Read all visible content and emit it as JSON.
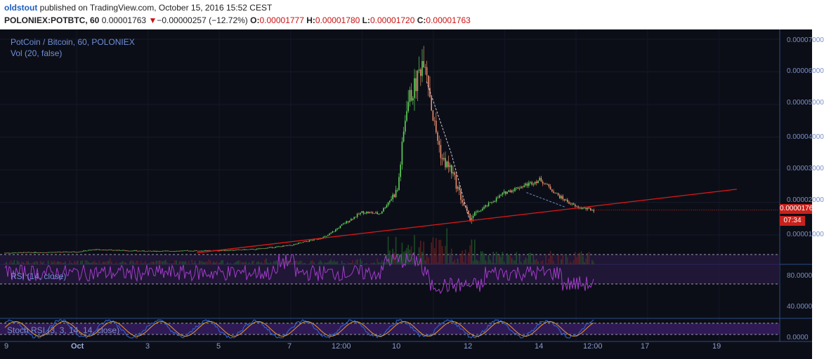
{
  "header": {
    "author": "oldstout",
    "published": " published on TradingView.com, October 15, 2016 15:52 CEST",
    "symbol": "POLONIEX:POTBTC, 60",
    "last": "0.00001763",
    "down_arrow": "▼",
    "change": "−0.00000257 (−12.72%)",
    "o_label": "O:",
    "o_val": "0.00001777",
    "h_label": "H:",
    "h_val": "0.00001780",
    "l_label": "L:",
    "l_val": "0.00001720",
    "c_label": "C:",
    "c_val": "0.00001763"
  },
  "panes": {
    "main_title": "PotCoin / Bitcoin, 60, POLONIEX",
    "vol_title": "Vol (20, false)",
    "rsi_title": "RSI (14, close)",
    "stoch_title": "Stoch RSI (3, 3, 14, 14, close)"
  },
  "price_axis": [
    "0.00007000",
    "0.00006000",
    "0.00005000",
    "0.00004000",
    "0.00003000",
    "0.00002000",
    "0.00001000"
  ],
  "rsi_axis": [
    "80.0000",
    "40.0000"
  ],
  "stoch_axis": [
    "0.0000"
  ],
  "badges": {
    "price": "0.00001763",
    "timer": "07:34"
  },
  "x_axis": [
    {
      "label": "9",
      "bold": false
    },
    {
      "label": "Oct",
      "bold": true
    },
    {
      "label": "3",
      "bold": false
    },
    {
      "label": "5",
      "bold": false
    },
    {
      "label": "7",
      "bold": false
    },
    {
      "label": "12:00",
      "bold": false
    },
    {
      "label": "10",
      "bold": false
    },
    {
      "label": "12",
      "bold": false
    },
    {
      "label": "14",
      "bold": false
    },
    {
      "label": "12:00",
      "bold": false
    },
    {
      "label": "17",
      "bold": false
    },
    {
      "label": "19",
      "bold": false
    }
  ],
  "colors": {
    "up": "#5fd35a",
    "down": "#e98c6a",
    "trend": "#e01818",
    "rsi": "#a03cc8",
    "stoch_k": "#2f6ad8",
    "stoch_d": "#e69a2a",
    "background": "#0c0e17"
  },
  "chart_data": {
    "type": "candlestick",
    "title": "PotCoin / Bitcoin, 60, POLONIEX",
    "x_range": [
      "Sep 29",
      "Oct 20"
    ],
    "ylim": [
      0,
      7e-05
    ],
    "price_path": [
      [
        "Sep 29",
        4.5e-06
      ],
      [
        "Oct 1",
        4.8e-06
      ],
      [
        "Oct 1 12:00",
        5.5e-06
      ],
      [
        "Oct 3",
        5e-06
      ],
      [
        "Oct 5",
        5.2e-06
      ],
      [
        "Oct 6",
        5.6e-06
      ],
      [
        "Oct 7",
        6.8e-06
      ],
      [
        "Oct 8",
        9.5e-06
      ],
      [
        "Oct 8 12:00",
        1.35e-05
      ],
      [
        "Oct 9",
        1.7e-05
      ],
      [
        "Oct 9 12:00",
        1.65e-05
      ],
      [
        "Oct 10",
        2.4e-05
      ],
      [
        "Oct 10 06:00",
        5e-05
      ],
      [
        "Oct 10 12:00",
        5.6e-05
      ],
      [
        "Oct 10 18:00",
        6.6e-05
      ],
      [
        "Oct 11",
        4.5e-05
      ],
      [
        "Oct 11 06:00",
        3.3e-05
      ],
      [
        "Oct 11 12:00",
        3e-05
      ],
      [
        "Oct 11 18:00",
        2.2e-05
      ],
      [
        "Oct 12",
        1.5e-05
      ],
      [
        "Oct 12 12:00",
        1.9e-05
      ],
      [
        "Oct 13",
        2.3e-05
      ],
      [
        "Oct 13 12:00",
        2.5e-05
      ],
      [
        "Oct 14",
        2.7e-05
      ],
      [
        "Oct 14 12:00",
        2.2e-05
      ],
      [
        "Oct 15",
        1.85e-05
      ],
      [
        "Oct 15 12:00",
        1.76e-05
      ]
    ],
    "close": 1.763e-05,
    "trendline": {
      "from": [
        "Oct 4",
        4.5e-06
      ],
      "to": [
        "Oct 19 12:00",
        2.4e-05
      ]
    },
    "indicators": [
      "Vol (20, false)",
      "RSI (14, close)",
      "Stoch RSI (3, 3, 14, 14, close)"
    ]
  }
}
